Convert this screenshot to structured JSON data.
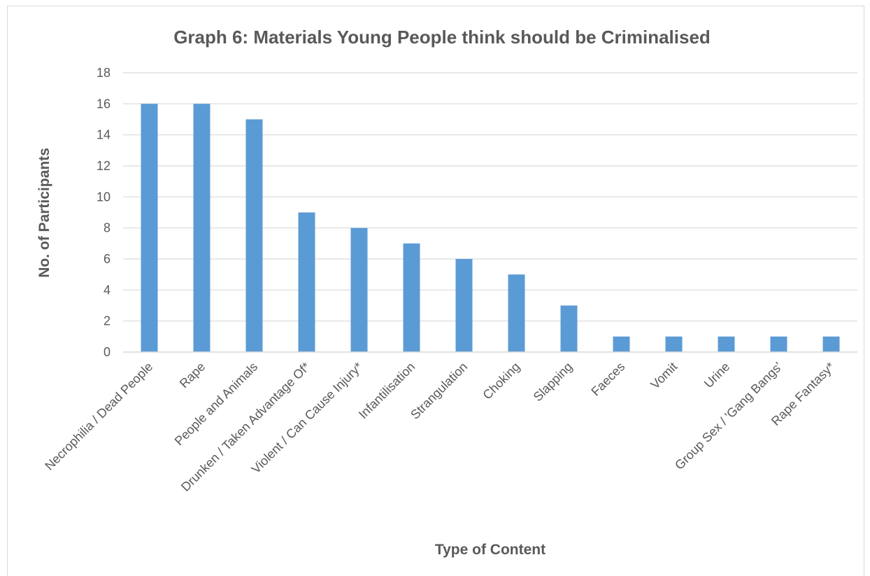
{
  "chart_data": {
    "type": "bar",
    "title": "Graph 6: Materials Young People think should be Criminalised",
    "xlabel": "Type of Content",
    "ylabel": "No. of Participants",
    "ylim": [
      0,
      18
    ],
    "yticks": [
      0,
      2,
      4,
      6,
      8,
      10,
      12,
      14,
      16,
      18
    ],
    "grid": true,
    "legend": "none",
    "bar_color": "#5b9bd5",
    "categories": [
      "Necrophilia / Dead People",
      "Rape",
      "People and Animals",
      "Drunken / Taken Advantage Of*",
      "Violent / Can Cause Injury*",
      "Infantilisation",
      "Strangulation",
      "Choking",
      "Slapping",
      "Faeces",
      "Vomit",
      "Urine",
      "Group Sex / 'Gang Bangs'",
      "Rape Fantasy*"
    ],
    "values": [
      16,
      16,
      15,
      9,
      8,
      7,
      6,
      5,
      3,
      1,
      1,
      1,
      1,
      1
    ]
  }
}
